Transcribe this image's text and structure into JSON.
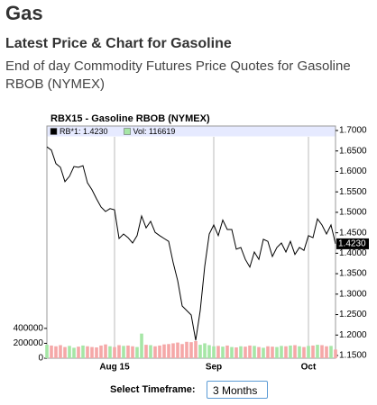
{
  "page": {
    "title": "Gas",
    "heading": "Latest Price & Chart for Gasoline",
    "description": "End of day Commodity Futures Price Quotes for Gasoline RBOB (NYMEX)",
    "timeframe_label": "Select Timeframe:",
    "timeframe_value": "3 Months"
  },
  "chart_data": {
    "type": "line",
    "title": "RBX15 - Gasoline RBOB (NYMEX)",
    "categories": [
      null,
      null,
      null,
      null,
      null,
      null,
      null,
      null,
      null,
      null,
      null,
      null,
      null,
      null,
      null,
      "Aug 15",
      null,
      null,
      null,
      null,
      null,
      null,
      null,
      null,
      null,
      null,
      null,
      null,
      null,
      null,
      null,
      null,
      null,
      null,
      null,
      null,
      null,
      "Sep",
      null,
      null,
      null,
      null,
      null,
      null,
      null,
      null,
      null,
      null,
      null,
      null,
      null,
      null,
      null,
      null,
      null,
      null,
      null,
      null,
      "Oct",
      null,
      null,
      null,
      null,
      null,
      null
    ],
    "series": [
      {
        "name": "RB*1: 1.4230",
        "color": "#000000",
        "values": [
          1.66,
          1.652,
          1.619,
          1.61,
          1.575,
          1.588,
          1.612,
          1.61,
          1.614,
          1.572,
          1.555,
          1.533,
          1.513,
          1.502,
          1.509,
          1.506,
          1.436,
          1.447,
          1.438,
          1.425,
          1.443,
          1.491,
          1.462,
          1.478,
          1.451,
          1.443,
          1.436,
          1.429,
          1.377,
          1.333,
          1.271,
          1.26,
          1.249,
          1.187,
          1.26,
          1.368,
          1.447,
          1.469,
          1.443,
          1.481,
          1.458,
          1.458,
          1.41,
          1.414,
          1.385,
          1.366,
          1.403,
          1.385,
          1.434,
          1.429,
          1.392,
          1.414,
          1.425,
          1.403,
          1.429,
          1.397,
          1.414,
          1.407,
          1.443,
          1.438,
          1.484,
          1.469,
          1.447,
          1.469,
          1.423
        ]
      },
      {
        "name": "Vol: 116619",
        "type": "bar",
        "axis": "y2",
        "color": "#a6e6a6",
        "down_color": "#f5a8a8",
        "values": [
          180000,
          170000,
          160000,
          175000,
          150000,
          165000,
          140000,
          155000,
          170000,
          160000,
          150000,
          145000,
          170000,
          185000,
          160000,
          150000,
          175000,
          165000,
          170000,
          160000,
          150000,
          330000,
          180000,
          175000,
          160000,
          170000,
          185000,
          190000,
          200000,
          210000,
          190000,
          220000,
          215000,
          230000,
          180000,
          200000,
          175000,
          160000,
          165000,
          155000,
          170000,
          150000,
          145000,
          160000,
          155000,
          170000,
          165000,
          150000,
          140000,
          160000,
          155000,
          150000,
          165000,
          160000,
          170000,
          175000,
          160000,
          150000,
          165000,
          170000,
          180000,
          175000,
          160000,
          165000,
          116619
        ]
      }
    ],
    "last_value_label": "1.4230",
    "ylim": [
      1.1434,
      1.711
    ],
    "yticks": [
      {
        "value": 1.7,
        "label": "1.7000"
      },
      {
        "value": 1.65,
        "label": "1.6500"
      },
      {
        "value": 1.6,
        "label": "1.6000"
      },
      {
        "value": 1.55,
        "label": "1.5500"
      },
      {
        "value": 1.5,
        "label": "1.5000"
      },
      {
        "value": 1.45,
        "label": "1.4500"
      },
      {
        "value": 1.4,
        "label": "1.4000"
      },
      {
        "value": 1.35,
        "label": "1.3500"
      },
      {
        "value": 1.3,
        "label": "1.3000"
      },
      {
        "value": 1.25,
        "label": "1.2500"
      },
      {
        "value": 1.2,
        "label": "1.2000"
      },
      {
        "value": 1.15,
        "label": "1.1500"
      }
    ],
    "y2lim": [
      0,
      3115000
    ],
    "y2ticks": [
      0,
      200000,
      400000
    ],
    "grid": true
  }
}
